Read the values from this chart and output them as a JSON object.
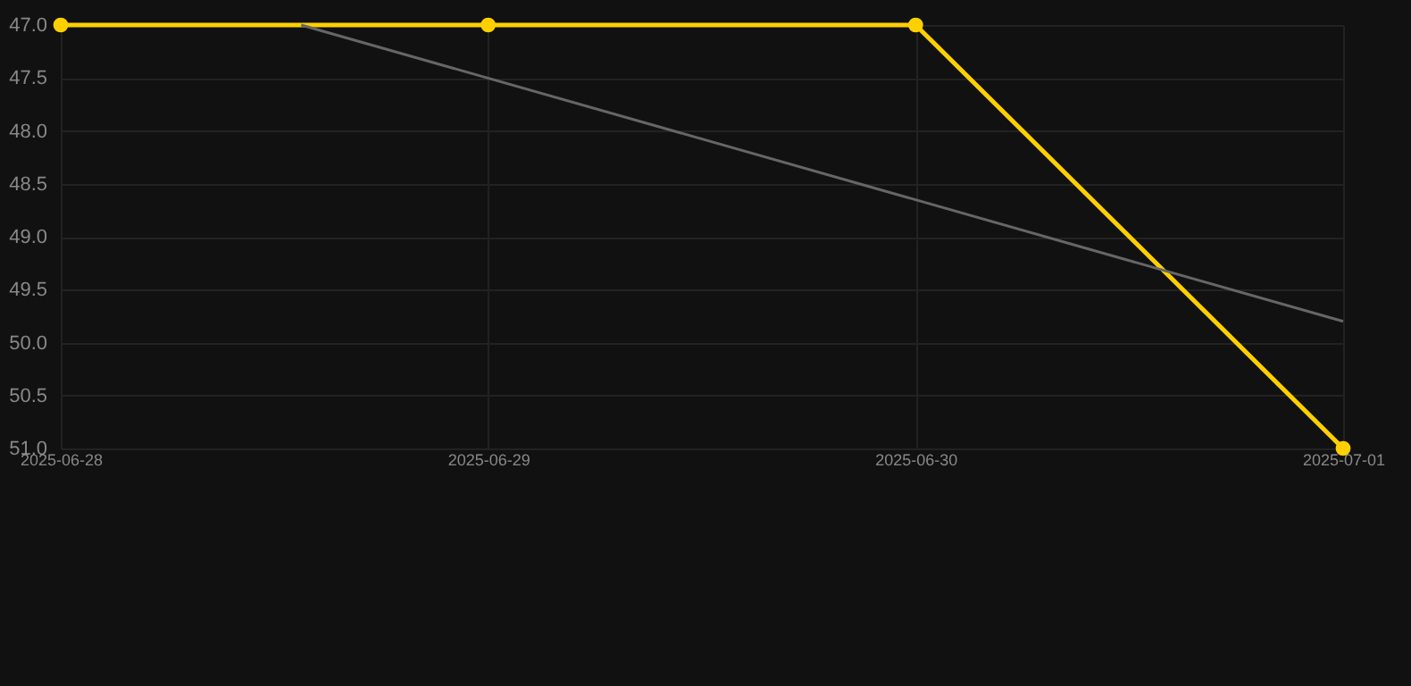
{
  "chart_data": {
    "type": "line",
    "x": [
      "2025-06-28",
      "2025-06-29",
      "2025-06-30",
      "2025-07-01"
    ],
    "series": [
      {
        "color": "#ffd000",
        "values": [
          47,
          47,
          47,
          51
        ],
        "marker": "circle"
      },
      {
        "type": "line",
        "color": "#666666",
        "x": [
          "2025-06-28T13:30",
          "2025-07-01"
        ],
        "values": [
          47,
          49.8
        ],
        "marker": "none"
      }
    ],
    "xlim": [
      "2025-06-28",
      "2025-07-01"
    ],
    "xticks": [
      "2025-06-28",
      "2025-06-29",
      "2025-06-30",
      "2025-07-01"
    ],
    "ylim": [
      51,
      47
    ],
    "yticks": [
      {
        "value": 47,
        "label": "47.0"
      },
      {
        "value": 47.5,
        "label": "47.5"
      },
      {
        "value": 48,
        "label": "48.0"
      },
      {
        "value": 48.5,
        "label": "48.5"
      },
      {
        "value": 49,
        "label": "49.0"
      },
      {
        "value": 49.5,
        "label": "49.5"
      },
      {
        "value": 50,
        "label": "50.0"
      },
      {
        "value": 50.5,
        "label": "50.5"
      },
      {
        "value": 51,
        "label": "51.0"
      }
    ],
    "grid": true,
    "line_style": "solid"
  }
}
